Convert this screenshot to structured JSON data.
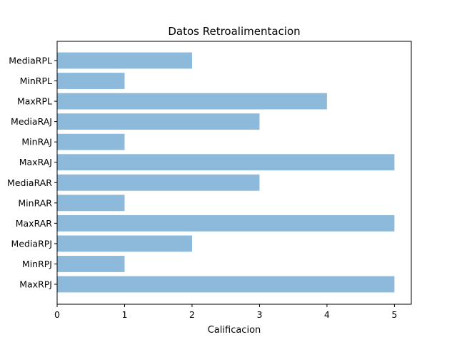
{
  "chart_data": {
    "type": "bar",
    "orientation": "horizontal",
    "title": "Datos Retroalimentacion",
    "xlabel": "Calificacion",
    "ylabel": "",
    "categories": [
      "MediaRPL",
      "MinRPL",
      "MaxRPL",
      "MediaRAJ",
      "MinRAJ",
      "MaxRAJ",
      "MediaRAR",
      "MinRAR",
      "MaxRAR",
      "MediaRPJ",
      "MinRPJ",
      "MaxRPJ"
    ],
    "values": [
      2,
      1,
      4,
      3,
      1,
      5,
      3,
      1,
      5,
      2,
      1,
      5
    ],
    "xlim": [
      0,
      5.25
    ],
    "xticks": [
      0,
      1,
      2,
      3,
      4,
      5
    ],
    "grid": false,
    "bar_color": "#8dbadb"
  }
}
